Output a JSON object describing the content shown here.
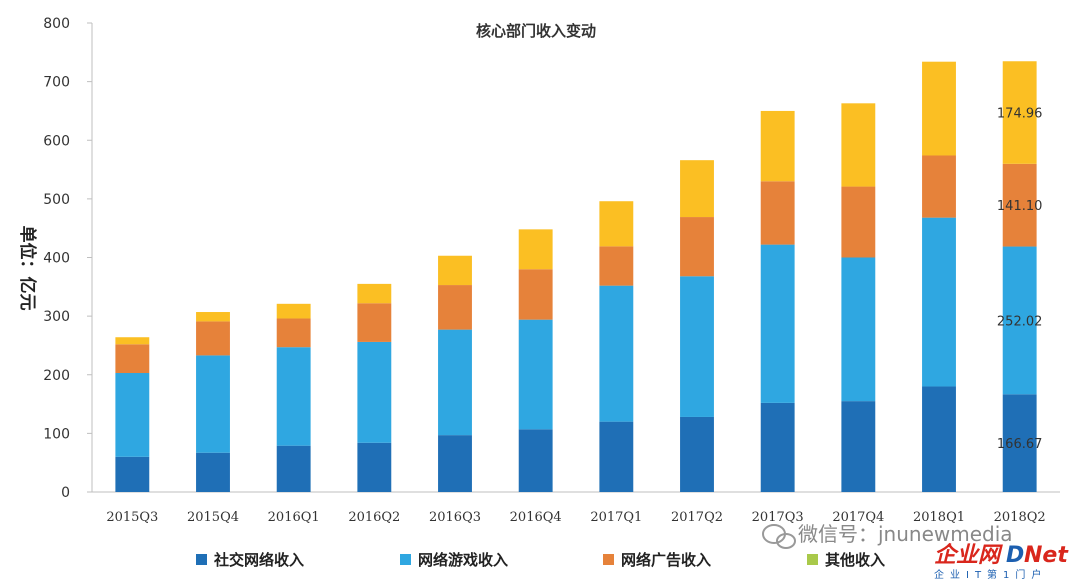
{
  "chart_data": {
    "type": "bar",
    "stacked": true,
    "title": "核心部门收入变动",
    "ylabel": "单位：亿元",
    "xlabel": "",
    "ylim": [
      0,
      800
    ],
    "yticks": [
      0,
      100,
      200,
      300,
      400,
      500,
      600,
      700,
      800
    ],
    "grid": false,
    "legend_position": "bottom",
    "categories": [
      "2015Q3",
      "2015Q4",
      "2016Q1",
      "2016Q2",
      "2016Q3",
      "2016Q4",
      "2017Q1",
      "2017Q2",
      "2017Q3",
      "2017Q4",
      "2018Q1",
      "2018Q2"
    ],
    "series": [
      {
        "name": "社交网络收入",
        "color": "#1f6fb6",
        "values": [
          60,
          67,
          79,
          84,
          97,
          107,
          120,
          128,
          152,
          155,
          180,
          166.67
        ]
      },
      {
        "name": "网络游戏收入",
        "color": "#2fa7e1",
        "values": [
          143,
          166,
          168,
          172,
          180,
          187,
          232,
          240,
          270,
          245,
          288,
          252.02
        ]
      },
      {
        "name": "网络广告收入",
        "color": "#e6823a",
        "values": [
          49,
          58,
          49,
          66,
          76,
          86,
          67,
          101,
          108,
          121,
          106,
          141.1
        ]
      },
      {
        "name": "其他收入",
        "color": "#fbbf23",
        "values": [
          12,
          16,
          25,
          33,
          50,
          68,
          77,
          97,
          120,
          142,
          160,
          174.96
        ]
      }
    ],
    "data_labels": [
      {
        "category": "2018Q2",
        "series": "其他收入",
        "text": "174.96"
      },
      {
        "category": "2018Q2",
        "series": "网络广告收入",
        "text": "141.10"
      },
      {
        "category": "2018Q2",
        "series": "网络游戏收入",
        "text": "252.02"
      },
      {
        "category": "2018Q2",
        "series": "社交网络收入",
        "text": "166.67"
      }
    ],
    "legend_extra_color": "#a9c94a"
  },
  "watermark": {
    "wechat_text": "微信号：jnunewmedia",
    "brand_text": "企业网",
    "brand_text_2": "D",
    "brand_text_3": "Net",
    "sub_text": "企业IT第1门户"
  }
}
